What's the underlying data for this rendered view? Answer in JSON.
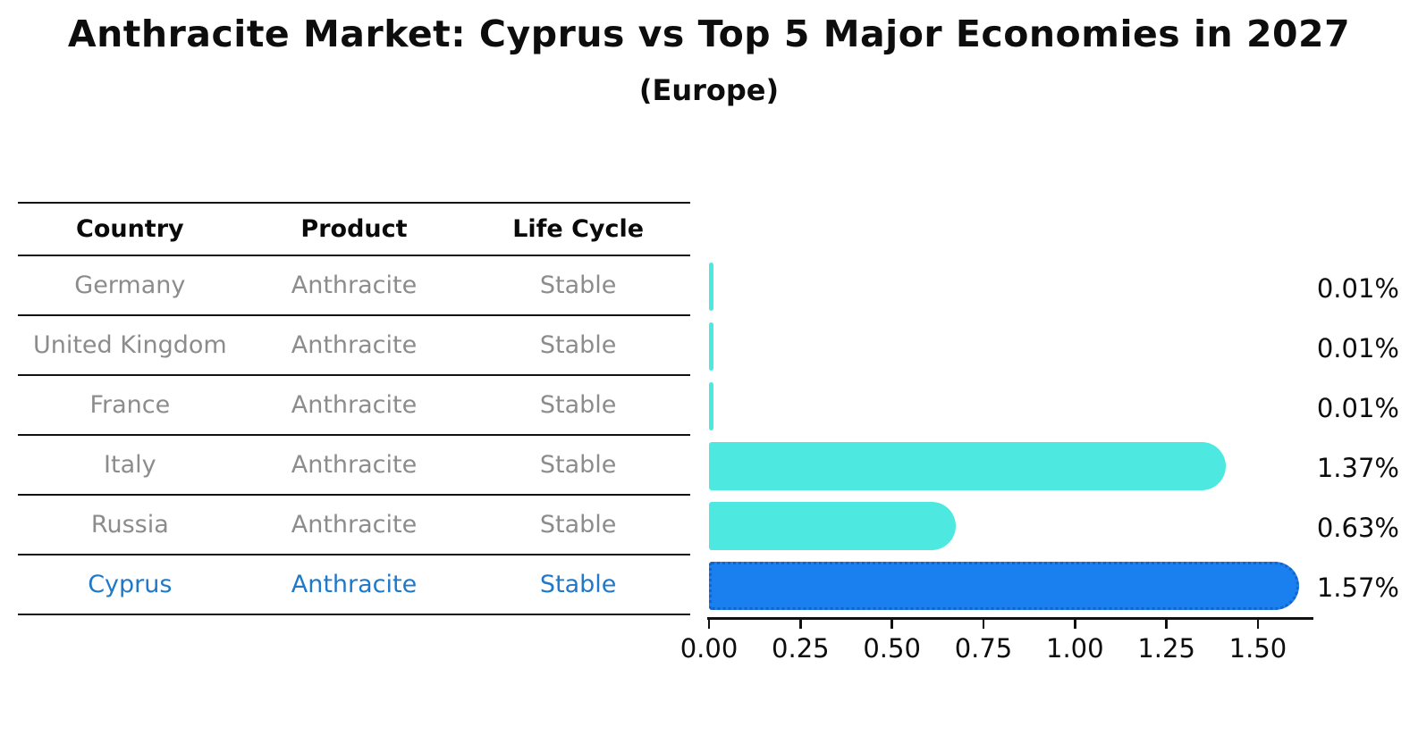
{
  "chart_data": {
    "type": "bar",
    "orientation": "horizontal",
    "title": "Anthracite Market: Cyprus vs Top 5 Major Economies in 2027",
    "subtitle": "(Europe)",
    "categories": [
      "Germany",
      "United Kingdom",
      "France",
      "Italy",
      "Russia",
      "Cyprus"
    ],
    "values": [
      0.01,
      0.01,
      0.01,
      1.37,
      0.63,
      1.57
    ],
    "value_labels": [
      "0.01%",
      "0.01%",
      "0.01%",
      "1.37%",
      "0.63%",
      "1.57%"
    ],
    "x_tick_labels": [
      "0.00",
      "0.25",
      "0.50",
      "0.75",
      "1.00",
      "1.25",
      "1.50"
    ],
    "xlim": [
      0,
      1.65
    ],
    "highlight_index": 5,
    "grid": false,
    "legend": false,
    "colors": {
      "bar_default": "#4de9e1",
      "bar_highlight": "#1a80f0",
      "bar_highlight_border": "#1563c8",
      "highlight_text": "#1f78c8",
      "row_text": "#8c8c8c",
      "axis_text": "#0d0d0d"
    }
  },
  "table": {
    "headers": [
      "Country",
      "Product",
      "Life Cycle"
    ],
    "rows": [
      {
        "country": "Germany",
        "product": "Anthracite",
        "life_cycle": "Stable",
        "highlighted": false
      },
      {
        "country": "United Kingdom",
        "product": "Anthracite",
        "life_cycle": "Stable",
        "highlighted": false
      },
      {
        "country": "France",
        "product": "Anthracite",
        "life_cycle": "Stable",
        "highlighted": false
      },
      {
        "country": "Italy",
        "product": "Anthracite",
        "life_cycle": "Stable",
        "highlighted": false
      },
      {
        "country": "Russia",
        "product": "Anthracite",
        "life_cycle": "Stable",
        "highlighted": false
      },
      {
        "country": "Cyprus",
        "product": "Anthracite",
        "life_cycle": "Stable",
        "highlighted": true
      }
    ]
  }
}
